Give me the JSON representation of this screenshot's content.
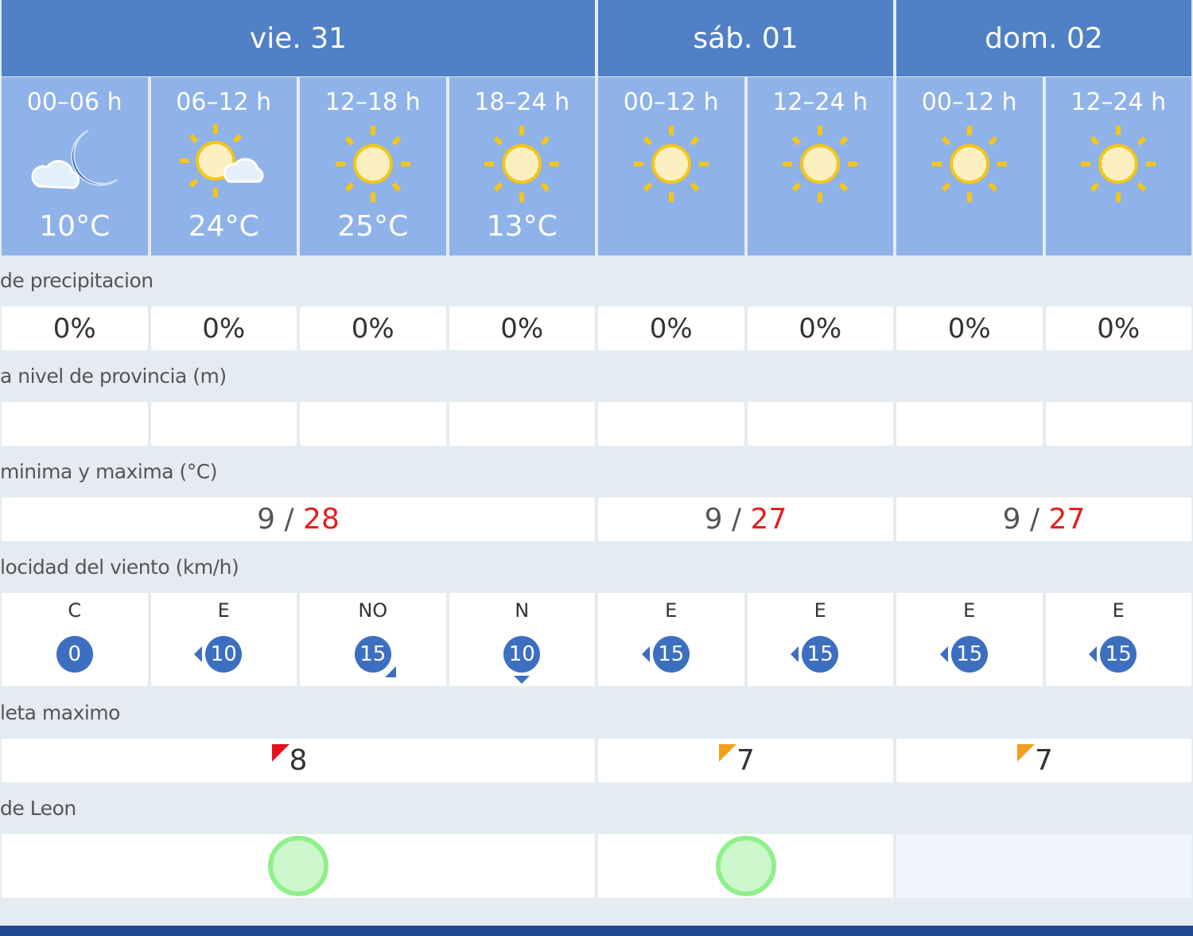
{
  "days": [
    {
      "label": "vie. 31",
      "span": 4
    },
    {
      "label": "sáb. 01",
      "span": 2
    },
    {
      "label": "dom. 02",
      "span": 2
    }
  ],
  "periods": [
    {
      "label": "00–06 h",
      "icon": "moon-cloud-icon",
      "temp": "10°C"
    },
    {
      "label": "06–12 h",
      "icon": "sun-cloud-icon",
      "temp": "24°C"
    },
    {
      "label": "12–18 h",
      "icon": "sun-icon",
      "temp": "25°C"
    },
    {
      "label": "18–24 h",
      "icon": "sun-icon",
      "temp": "13°C"
    },
    {
      "label": "00–12 h",
      "icon": "sun-icon",
      "temp": ""
    },
    {
      "label": "12–24 h",
      "icon": "sun-icon",
      "temp": ""
    },
    {
      "label": "00–12 h",
      "icon": "sun-icon",
      "temp": ""
    },
    {
      "label": "12–24 h",
      "icon": "sun-icon",
      "temp": ""
    }
  ],
  "labels": {
    "precip": "de precipitacion",
    "snow": "a nivel de provincia (m)",
    "temps": "minima y maxima (°C)",
    "wind": "locidad del viento (km/h)",
    "uv": "leta maximo",
    "pollen": "de Leon"
  },
  "precip": [
    "0%",
    "0%",
    "0%",
    "0%",
    "0%",
    "0%",
    "0%",
    "0%"
  ],
  "snow": [
    "",
    "",
    "",
    "",
    "",
    "",
    "",
    ""
  ],
  "temps": [
    {
      "min": "9",
      "max": "28"
    },
    {
      "min": "9",
      "max": "27"
    },
    {
      "min": "9",
      "max": "27"
    }
  ],
  "temp_sep": " / ",
  "wind": [
    {
      "dir": "C",
      "speed": "0",
      "arrow": "none"
    },
    {
      "dir": "E",
      "speed": "10",
      "arrow": "left"
    },
    {
      "dir": "NO",
      "speed": "15",
      "arrow": "se"
    },
    {
      "dir": "N",
      "speed": "10",
      "arrow": "down"
    },
    {
      "dir": "E",
      "speed": "15",
      "arrow": "left"
    },
    {
      "dir": "E",
      "speed": "15",
      "arrow": "left"
    },
    {
      "dir": "E",
      "speed": "15",
      "arrow": "left"
    },
    {
      "dir": "E",
      "speed": "15",
      "arrow": "left"
    }
  ],
  "uv": [
    {
      "value": "8",
      "color": "#e8101c"
    },
    {
      "value": "7",
      "color": "#f0a01c"
    },
    {
      "value": "7",
      "color": "#f0a01c"
    }
  ],
  "pollen": [
    {
      "level": "low",
      "color": "#8ff08a"
    },
    {
      "level": "low",
      "color": "#8ff08a"
    },
    {
      "level": "none",
      "color": ""
    }
  ],
  "colors": {
    "day_header": "#5080c6",
    "period_header": "#8fb2e8",
    "wind_badge": "#3d6fc0",
    "max_temp": "#e02020"
  }
}
